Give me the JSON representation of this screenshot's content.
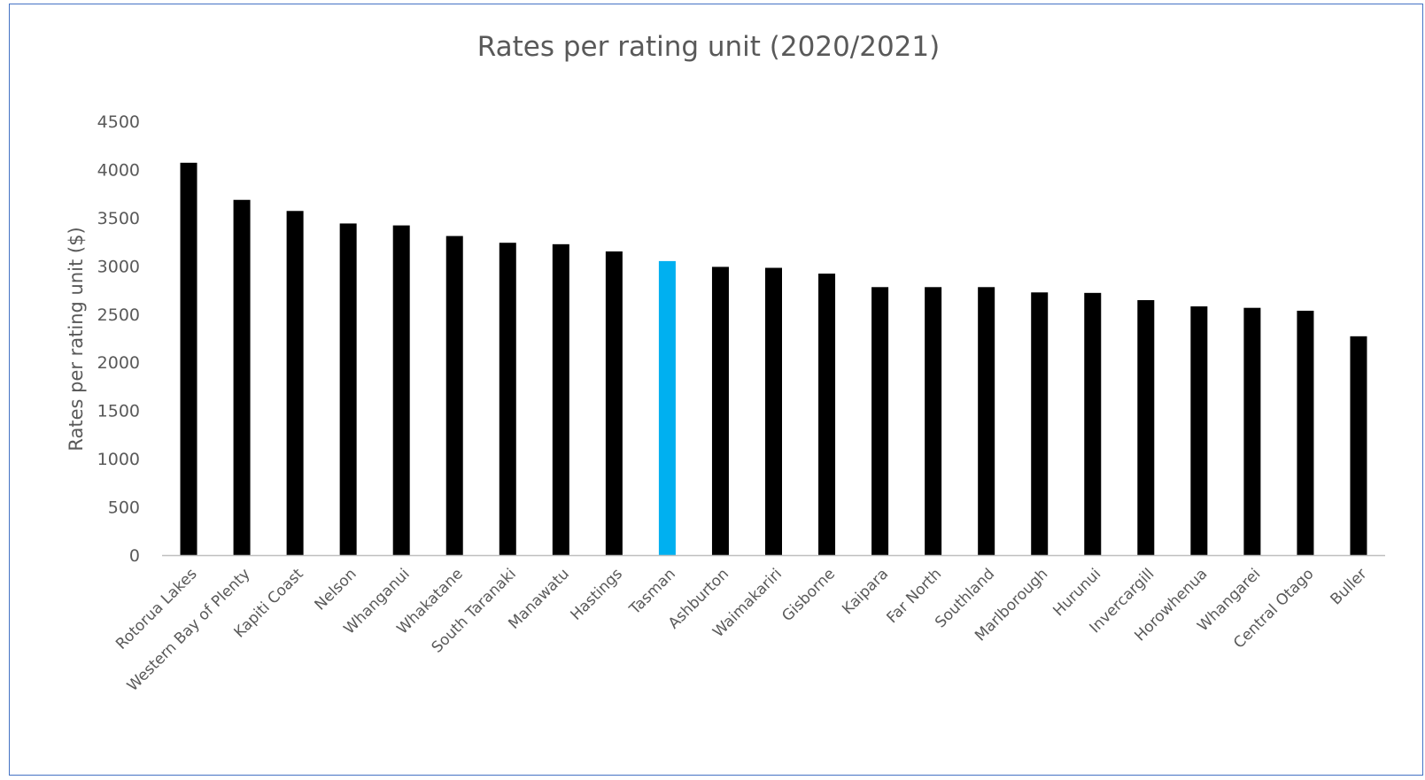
{
  "chart_data": {
    "type": "bar",
    "title": "Rates per rating unit (2020/2021)",
    "xlabel": "",
    "ylabel": "Rates per rating unit ($)",
    "ylim": [
      0,
      4500
    ],
    "yticks": [
      0,
      500,
      1000,
      1500,
      2000,
      2500,
      3000,
      3500,
      4000,
      4500
    ],
    "grid": false,
    "categories": [
      "Rotorua Lakes",
      "Western Bay of Plenty",
      "Kapiti Coast",
      "Nelson",
      "Whanganui",
      "Whakatane",
      "South Taranaki",
      "Manawatu",
      "Hastings",
      "Tasman",
      "Ashburton",
      "Waimakariri",
      "Gisborne",
      "Kaipara",
      "Far North",
      "Southland",
      "Marlborough",
      "Hurunui",
      "Invercargill",
      "Horowhenua",
      "Whangarei",
      "Central Otago",
      "Buller"
    ],
    "values": [
      4070,
      3685,
      3570,
      3440,
      3420,
      3310,
      3240,
      3225,
      3150,
      3050,
      2990,
      2980,
      2920,
      2780,
      2780,
      2780,
      2725,
      2720,
      2645,
      2580,
      2565,
      2535,
      2270
    ],
    "colors": {
      "default": "#000000",
      "highlight": "#00b0f0",
      "text": "#595959",
      "axis": "#bfbfbf",
      "border": "#4472c4"
    },
    "highlight_category": "Tasman"
  }
}
